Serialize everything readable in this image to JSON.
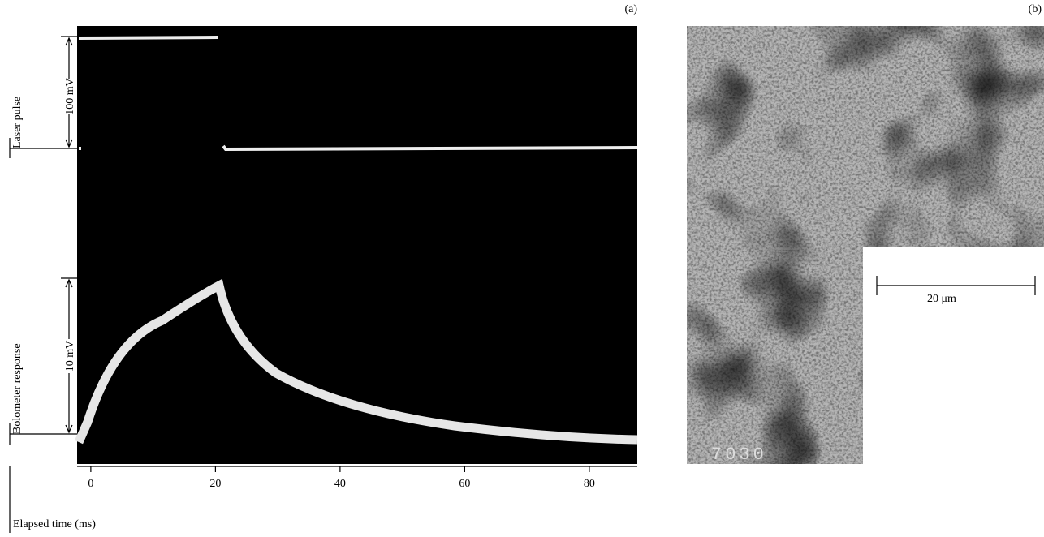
{
  "panel_a": {
    "label": "(a)",
    "laser_label": "Laser pulse",
    "laser_scale": "100 mV",
    "bolometer_label": "Bolometer response",
    "bolometer_scale": "10 mV",
    "x_axis": {
      "title": "Elapsed time (ms)",
      "lim": [
        -2.2,
        87.7
      ],
      "ticks": [
        0,
        20,
        40,
        60,
        80
      ]
    }
  },
  "panel_b": {
    "label": "(b)",
    "scale_bar": "20 μm",
    "image_code": "7030"
  }
}
